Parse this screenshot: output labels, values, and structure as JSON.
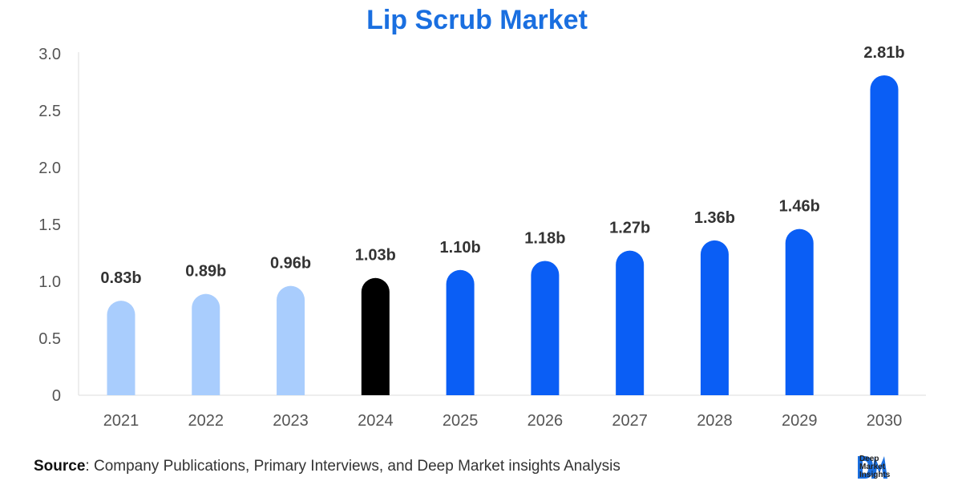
{
  "colors": {
    "title": "#1a6fe0",
    "historical": "#a9cdfd",
    "base_year": "#000000",
    "forecast": "#0a5ef5",
    "axis_text": "#555555",
    "label_text": "#333333",
    "grid_axis": "#dddddd"
  },
  "chart_data": {
    "type": "bar",
    "title": "Lip Scrub Market",
    "xlabel": "",
    "ylabel": "",
    "categories": [
      "2021",
      "2022",
      "2023",
      "2024",
      "2025",
      "2026",
      "2027",
      "2028",
      "2029",
      "2030"
    ],
    "values": [
      0.83,
      0.89,
      0.96,
      1.03,
      1.1,
      1.18,
      1.27,
      1.36,
      1.46,
      2.81
    ],
    "data_labels": [
      "0.83b",
      "0.89b",
      "0.96b",
      "1.03b",
      "1.10b",
      "1.18b",
      "1.27b",
      "1.36b",
      "1.46b",
      "2.81b"
    ],
    "bar_group": [
      "historical",
      "historical",
      "historical",
      "base_year",
      "forecast",
      "forecast",
      "forecast",
      "forecast",
      "forecast",
      "forecast"
    ],
    "ylim": [
      0,
      3.0
    ],
    "yticks": [
      0,
      0.5,
      1.0,
      1.5,
      2.0,
      2.5,
      3.0
    ],
    "ytick_labels": [
      "0",
      "0.5",
      "1.0",
      "1.5",
      "2.0",
      "2.5",
      "3.0"
    ],
    "grid": false,
    "legend": "none"
  },
  "footer": {
    "source_label": "Source",
    "source_text": ": Company Publications, Primary Interviews, and Deep Market insights Analysis"
  },
  "logo": {
    "line1": "Deep",
    "line2": "Market",
    "line3": "Insights"
  }
}
